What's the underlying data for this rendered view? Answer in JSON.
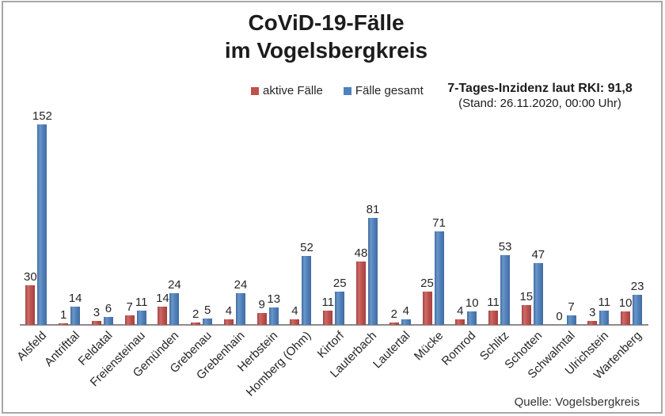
{
  "title": {
    "line1": "CoViD-19-Fälle",
    "line2": "im Vogelsbergkreis"
  },
  "legend": {
    "items": [
      {
        "label": "aktive Fälle",
        "color": "#C0504D"
      },
      {
        "label": "Fälle gesamt",
        "color": "#4F81BD"
      }
    ]
  },
  "incidence_note": {
    "line1": "7-Tages-Inzidenz laut RKI: 91,8",
    "line2": "(Stand: 26.11.2020, 00:00 Uhr)"
  },
  "source": "Quelle: Vogelsbergkreis",
  "chart_data": {
    "type": "bar",
    "title": "CoViD-19-Fälle im Vogelsbergkreis",
    "categories": [
      "Alsfeld",
      "Antrifttal",
      "Feldatal",
      "Freiensteinau",
      "Gemünden",
      "Grebenau",
      "Grebenhain",
      "Herbstein",
      "Homberg (Ohm)",
      "Kirtorf",
      "Lauterbach",
      "Lautertal",
      "Mücke",
      "Romrod",
      "Schlitz",
      "Schotten",
      "Schwalmtal",
      "Ulrichstein",
      "Wartenberg"
    ],
    "series": [
      {
        "name": "aktive Fälle",
        "color": "#C0504D",
        "values": [
          30,
          1,
          3,
          7,
          14,
          2,
          4,
          9,
          4,
          11,
          48,
          2,
          25,
          4,
          11,
          15,
          0,
          3,
          10
        ]
      },
      {
        "name": "Fälle gesamt",
        "color": "#4F81BD",
        "values": [
          152,
          14,
          6,
          11,
          24,
          5,
          24,
          13,
          52,
          25,
          81,
          4,
          71,
          10,
          53,
          47,
          7,
          11,
          23
        ]
      }
    ],
    "xlabel": "",
    "ylabel": "",
    "ylim": [
      0,
      160
    ],
    "grid": false,
    "value_labels": true,
    "legend_position": "top-center",
    "bar_orientation": "vertical"
  }
}
